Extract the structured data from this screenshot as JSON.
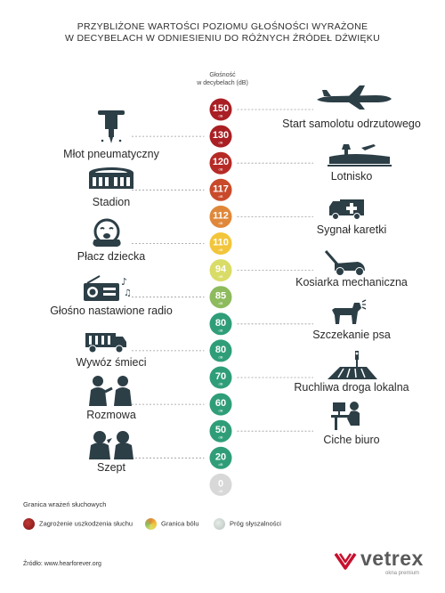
{
  "title": {
    "line1": "PRZYBLIŻONE WARTOŚCI POZIOMU GŁOŚNOŚCI WYRAŻONE",
    "line2": "W DECYBELACH W ODNIESIENIU DO RÓŻNYCH ŹRÓDEŁ DŹWIĘKU"
  },
  "scale_header": {
    "line1": "Głośność",
    "line2": "w decybelach (dB)"
  },
  "chart_data": {
    "type": "scale",
    "unit": "dB",
    "levels": [
      {
        "value": 150,
        "label": "Start samolotu odrzutowego",
        "side": "right",
        "color": "#a91f24",
        "icon": "airplane-icon"
      },
      {
        "value": 130,
        "label": "Młot pneumatyczny",
        "side": "left",
        "color": "#a91f24",
        "icon": "jackhammer-icon"
      },
      {
        "value": 120,
        "label": "Lotnisko",
        "side": "right",
        "color": "#b62a26",
        "icon": "airport-icon"
      },
      {
        "value": 117,
        "label": "Stadion",
        "side": "left",
        "color": "#c94a2a",
        "icon": "stadium-icon"
      },
      {
        "value": 112,
        "label": "Sygnał karetki",
        "side": "right",
        "color": "#e0883a",
        "icon": "ambulance-icon"
      },
      {
        "value": 110,
        "label": "Płacz dziecka",
        "side": "left",
        "color": "#f2c53a",
        "icon": "crying-baby-icon"
      },
      {
        "value": 94,
        "label": "Kosiarka mechaniczna",
        "side": "right",
        "color": "#d9dc66",
        "icon": "lawnmower-icon"
      },
      {
        "value": 85,
        "label": "Głośno nastawione radio",
        "side": "left",
        "color": "#8dbb5d",
        "icon": "radio-icon"
      },
      {
        "value": 80,
        "label": "Szczekanie psa",
        "side": "right",
        "color": "#2f9e78",
        "icon": "barking-dog-icon"
      },
      {
        "value": 80,
        "label": "Wywóz śmieci",
        "side": "left",
        "color": "#2f9e78",
        "icon": "garbage-truck-icon"
      },
      {
        "value": 70,
        "label": "Ruchliwa droga lokalna",
        "side": "right",
        "color": "#2f9e78",
        "icon": "road-icon"
      },
      {
        "value": 60,
        "label": "Rozmowa",
        "side": "left",
        "color": "#2f9e78",
        "icon": "conversation-icon"
      },
      {
        "value": 50,
        "label": "Ciche biuro",
        "side": "right",
        "color": "#2f9e78",
        "icon": "office-icon"
      },
      {
        "value": 20,
        "label": "Szept",
        "side": "left",
        "color": "#2f9e78",
        "icon": "whisper-icon"
      },
      {
        "value": 0,
        "label": "",
        "side": "",
        "color": "#d8d8d8",
        "icon": ""
      }
    ],
    "unit_small": "dB"
  },
  "legend": {
    "header": "Granica wrażeń słuchowych",
    "items": [
      {
        "label": "Zagrożenie uszkodzenia słuchu",
        "color": "#a91f24"
      },
      {
        "label": "Granica bólu",
        "color": "#f2c53a"
      },
      {
        "label": "Próg słyszalności",
        "color": "#cfd8d2"
      }
    ]
  },
  "source": "Źródło: www.hearforever.org",
  "brand": {
    "name": "vetrex",
    "sub": "okna premium",
    "color": "#c8102e"
  }
}
